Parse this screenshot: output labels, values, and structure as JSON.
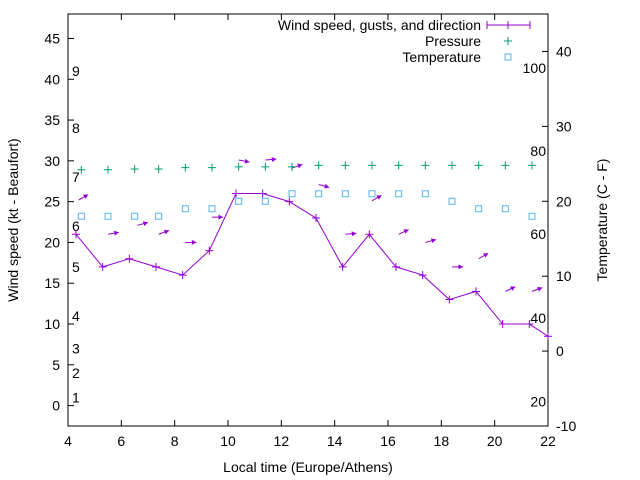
{
  "colors": {
    "wind": "#9400d3",
    "pressure": "#009e73",
    "temperature": "#56b4e9",
    "axis": "#000000"
  },
  "chart_data": {
    "type": "line",
    "xlabel": "Local time (Europe/Athens)",
    "ylabel": "Wind speed (kt - Beaufort)",
    "y2label": "Temperature (C - F)",
    "xlim": [
      4,
      22
    ],
    "ylim": [
      -2.5,
      48
    ],
    "y2lim": [
      -10,
      45
    ],
    "x_ticks": [
      4,
      6,
      8,
      10,
      12,
      14,
      16,
      18,
      20,
      22
    ],
    "y_ticks": [
      0,
      5,
      10,
      15,
      20,
      25,
      30,
      35,
      40,
      45
    ],
    "y2_ticks": [
      -10,
      0,
      10,
      20,
      30,
      40
    ],
    "legend_position": "top-right",
    "grid": false,
    "beaufort_labels": [
      {
        "label": "1",
        "y": 1
      },
      {
        "label": "2",
        "y": 4
      },
      {
        "label": "3",
        "y": 7
      },
      {
        "label": "4",
        "y": 11
      },
      {
        "label": "5",
        "y": 17
      },
      {
        "label": "6",
        "y": 22
      },
      {
        "label": "7",
        "y": 28
      },
      {
        "label": "8",
        "y": 34
      },
      {
        "label": "9",
        "y": 41
      }
    ],
    "fahrenheit_labels": [
      {
        "label": "20",
        "temp": -6.7
      },
      {
        "label": "40",
        "temp": 4.4
      },
      {
        "label": "60",
        "temp": 15.6
      },
      {
        "label": "80",
        "temp": 26.7
      },
      {
        "label": "100",
        "temp": 37.8
      }
    ],
    "series": [
      {
        "name": "Wind speed, gusts, and direction",
        "style": "linespoints",
        "x": [
          4.3,
          5.3,
          6.3,
          7.3,
          8.3,
          9.3,
          10.3,
          11.3,
          12.3,
          13.3,
          14.3,
          15.3,
          16.3,
          17.3,
          18.3,
          19.3,
          20.3,
          21.3,
          22.0
        ],
        "y": [
          21,
          17,
          18,
          17,
          16,
          19,
          26,
          26,
          25,
          23,
          17,
          21,
          17,
          16,
          13,
          14,
          10,
          10,
          8.5
        ],
        "arrow_x": [
          4.4,
          5.5,
          6.6,
          7.4,
          8.4,
          9.4,
          10.4,
          11.4,
          12.4,
          13.4,
          14.4,
          15.4,
          16.4,
          17.4,
          18.4,
          19.4,
          20.4,
          21.4
        ],
        "arrow_y": [
          25.2,
          21.0,
          22.1,
          21.0,
          20.0,
          23.1,
          30.1,
          30.1,
          29.1,
          27.1,
          21.0,
          25.1,
          21.0,
          20.0,
          17.0,
          18.0,
          14.0,
          14.0
        ],
        "arrow_dir": [
          330,
          350,
          345,
          340,
          0,
          0,
          10,
          355,
          340,
          15,
          355,
          330,
          335,
          345,
          0,
          330,
          335,
          340
        ]
      },
      {
        "name": "Pressure",
        "style": "points",
        "x": [
          4.5,
          5.5,
          6.5,
          7.4,
          8.4,
          9.4,
          10.4,
          11.4,
          12.4,
          13.4,
          14.4,
          15.4,
          16.4,
          17.4,
          18.4,
          19.4,
          20.4,
          21.4
        ],
        "temp_axis_y": [
          24.2,
          24.2,
          24.3,
          24.3,
          24.5,
          24.5,
          24.6,
          24.6,
          24.6,
          24.8,
          24.8,
          24.8,
          24.8,
          24.8,
          24.8,
          24.8,
          24.8,
          24.8
        ]
      },
      {
        "name": "Temperature",
        "style": "points",
        "x": [
          4.5,
          5.5,
          6.5,
          7.4,
          8.4,
          9.4,
          10.4,
          11.4,
          12.4,
          13.4,
          14.4,
          15.4,
          16.4,
          17.4,
          18.4,
          19.4,
          20.4,
          21.4
        ],
        "y": [
          18,
          18,
          18,
          18,
          19,
          19,
          20,
          20,
          21,
          21,
          21,
          21,
          21,
          21,
          20,
          19,
          19,
          18
        ]
      }
    ]
  }
}
